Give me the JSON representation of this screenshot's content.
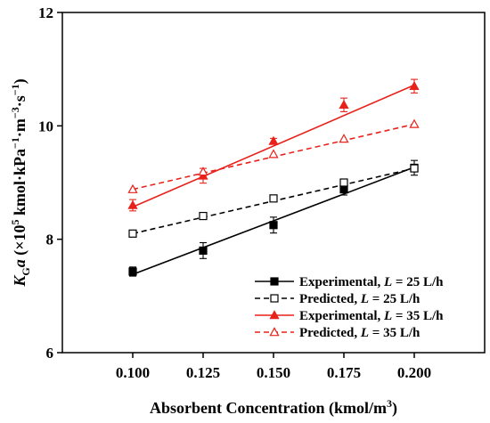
{
  "chart_data": {
    "type": "line",
    "xlabel": "Absorbent Concentration (kmol/m",
    "xlabel_sup": "3",
    "xlabel_end": ")",
    "ylabel": {
      "k": "K",
      "g": "G",
      "a": "a",
      "open": " (×10",
      "five": "5",
      "unit1": " kmol·kPa",
      "neg1a": "−1",
      "unit2": "·m",
      "neg3": "−3",
      "unit3": "·s",
      "neg1b": "−1",
      "close": ")"
    },
    "xlim": [
      0.075,
      0.225
    ],
    "ylim": [
      6,
      12
    ],
    "x_ticks": [
      0.1,
      0.125,
      0.15,
      0.175,
      0.2
    ],
    "x_tick_labels": [
      "0.100",
      "0.125",
      "0.150",
      "0.175",
      "0.200"
    ],
    "y_ticks": [
      6,
      8,
      10,
      12
    ],
    "y_tick_labels": [
      "6",
      "8",
      "10",
      "12"
    ],
    "legend_position": "bottom-right",
    "series": [
      {
        "name": "Experimental, L = 25 L/h",
        "legend_pre": "Experimental, ",
        "legend_var": "L",
        "legend_post": " = 25 L/h",
        "x": [
          0.1,
          0.125,
          0.15,
          0.175,
          0.2
        ],
        "y": [
          7.43,
          7.8,
          8.25,
          8.88,
          9.26
        ],
        "err": [
          0.08,
          0.14,
          0.14,
          0.1,
          0.13
        ],
        "fit": [
          [
            0.1,
            7.38
          ],
          [
            0.2,
            9.27
          ]
        ],
        "color": "#000000",
        "marker": "square-filled",
        "line": "solid"
      },
      {
        "name": "Predicted, L = 25 L/h",
        "legend_pre": "Predicted, ",
        "legend_var": "L",
        "legend_post": " = 25 L/h",
        "x": [
          0.1,
          0.125,
          0.15,
          0.175,
          0.2
        ],
        "y": [
          8.1,
          8.41,
          8.72,
          9.0,
          9.25
        ],
        "err": [],
        "fit": [
          [
            0.1,
            8.1
          ],
          [
            0.2,
            9.25
          ]
        ],
        "color": "#000000",
        "marker": "square-open",
        "line": "dashed"
      },
      {
        "name": "Experimental, L = 35 L/h",
        "legend_pre": "Experimental, ",
        "legend_var": "L",
        "legend_post": " = 35 L/h",
        "x": [
          0.1,
          0.125,
          0.15,
          0.175,
          0.2
        ],
        "y": [
          8.6,
          9.12,
          9.73,
          10.37,
          10.7
        ],
        "err": [
          0.1,
          0.13,
          0.05,
          0.12,
          0.12
        ],
        "fit": [
          [
            0.1,
            8.57
          ],
          [
            0.2,
            10.72
          ]
        ],
        "color": "#e8221b",
        "marker": "triangle-filled",
        "line": "solid"
      },
      {
        "name": "Predicted, L = 35 L/h",
        "legend_pre": "Predicted, ",
        "legend_var": "L",
        "legend_post": " = 35 L/h",
        "x": [
          0.1,
          0.125,
          0.15,
          0.175,
          0.2
        ],
        "y": [
          8.88,
          9.19,
          9.5,
          9.77,
          10.03
        ],
        "err": [],
        "fit": [
          [
            0.1,
            8.88
          ],
          [
            0.2,
            10.03
          ]
        ],
        "color": "#e8221b",
        "marker": "triangle-open",
        "line": "dashed"
      }
    ]
  }
}
